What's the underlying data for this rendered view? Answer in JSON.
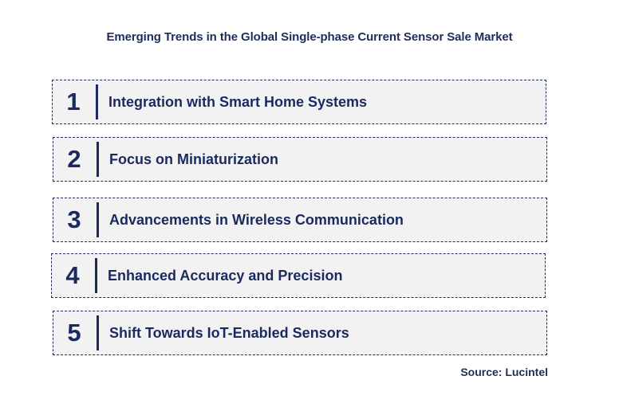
{
  "title": "Emerging Trends in the Global Single-phase Current Sensor Sale Market",
  "trends": [
    {
      "number": "1",
      "label": "Integration with Smart Home Systems"
    },
    {
      "number": "2",
      "label": "Focus on Miniaturization"
    },
    {
      "number": "3",
      "label": "Advancements in Wireless Communication"
    },
    {
      "number": "4",
      "label": "Enhanced Accuracy and Precision"
    },
    {
      "number": "5",
      "label": "Shift Towards IoT-Enabled Sensors"
    }
  ],
  "source": "Source: Lucintel"
}
